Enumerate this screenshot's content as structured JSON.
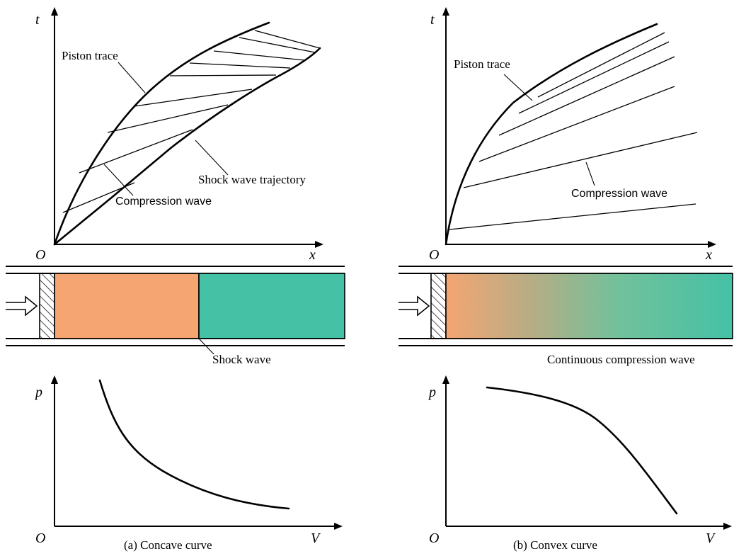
{
  "panel_a": {
    "axis_t": "t",
    "axis_x": "x",
    "origin_top": "O",
    "label_piston": "Piston trace",
    "label_shock_trajectory": "Shock wave trajectory",
    "label_compression": "Compression wave",
    "label_shock": "Shock wave",
    "axis_p": "p",
    "axis_v": "V",
    "origin_bottom": "O",
    "caption": "(a) Concave curve",
    "region_colors": [
      "#f4a572",
      "#45c1a6"
    ]
  },
  "panel_b": {
    "axis_t": "t",
    "axis_x": "x",
    "origin_top": "O",
    "label_piston": "Piston trace",
    "label_compression": "Compression wave",
    "label_continuous": "Continuous compression wave",
    "axis_p": "p",
    "axis_v": "V",
    "origin_bottom": "O",
    "caption": "(b) Convex curve",
    "gradient_colors": [
      "#f4a572",
      "#45c1a6"
    ]
  }
}
